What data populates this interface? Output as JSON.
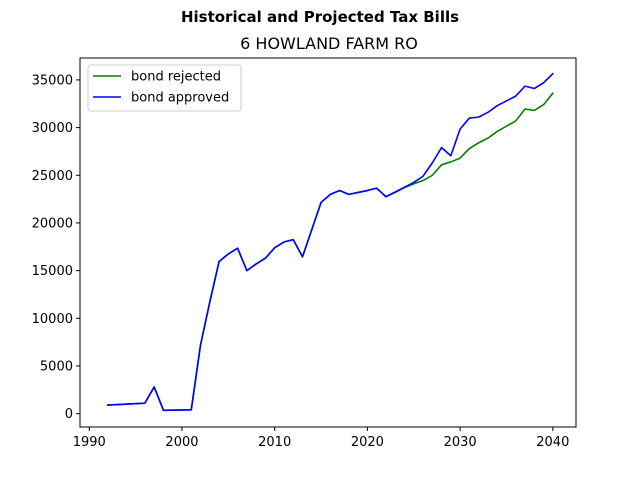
{
  "chart_data": {
    "type": "line",
    "suptitle": "Historical and Projected Tax Bills",
    "title": "6 HOWLAND FARM RO",
    "xlabel": "",
    "ylabel": "",
    "xlim": [
      1989,
      2042.5
    ],
    "ylim": [
      -1400,
      37300
    ],
    "x_ticks": [
      1990,
      2000,
      2010,
      2020,
      2030,
      2040
    ],
    "y_ticks": [
      0,
      5000,
      10000,
      15000,
      20000,
      25000,
      30000,
      35000
    ],
    "grid": false,
    "legend": "top-left",
    "series": [
      {
        "name": "bond rejected",
        "color": "#008000",
        "x": [
          1992,
          1996,
          1997,
          1998,
          2001,
          2002,
          2003,
          2004,
          2005,
          2006,
          2007,
          2008,
          2009,
          2010,
          2011,
          2012,
          2013,
          2014,
          2015,
          2016,
          2017,
          2018,
          2019,
          2020,
          2021,
          2022,
          2023,
          2024,
          2025,
          2026,
          2027,
          2028,
          2029,
          2030,
          2031,
          2032,
          2033,
          2034,
          2035,
          2036,
          2037,
          2038,
          2039,
          2040
        ],
        "y": [
          900,
          1100,
          2800,
          350,
          400,
          7200,
          11700,
          15950,
          16750,
          17350,
          15000,
          15700,
          16300,
          17400,
          18000,
          18250,
          16450,
          19300,
          22150,
          23000,
          23400,
          23000,
          23200,
          23400,
          23650,
          22750,
          23200,
          23700,
          24100,
          24450,
          25000,
          26100,
          26400,
          26800,
          27800,
          28400,
          28900,
          29600,
          30150,
          30700,
          31950,
          31800,
          32400,
          33600
        ]
      },
      {
        "name": "bond approved",
        "color": "#0000ff",
        "x": [
          1992,
          1996,
          1997,
          1998,
          2001,
          2002,
          2003,
          2004,
          2005,
          2006,
          2007,
          2008,
          2009,
          2010,
          2011,
          2012,
          2013,
          2014,
          2015,
          2016,
          2017,
          2018,
          2019,
          2020,
          2021,
          2022,
          2023,
          2024,
          2025,
          2026,
          2027,
          2028,
          2029,
          2030,
          2031,
          2032,
          2033,
          2034,
          2035,
          2036,
          2037,
          2038,
          2039,
          2040
        ],
        "y": [
          900,
          1100,
          2800,
          350,
          400,
          7200,
          11700,
          15950,
          16750,
          17350,
          15000,
          15700,
          16300,
          17400,
          18000,
          18250,
          16450,
          19300,
          22150,
          23000,
          23400,
          23000,
          23200,
          23400,
          23650,
          22750,
          23250,
          23750,
          24250,
          24900,
          26300,
          27900,
          27050,
          29850,
          31000,
          31100,
          31600,
          32300,
          32800,
          33300,
          34350,
          34100,
          34700,
          35650
        ]
      }
    ]
  }
}
